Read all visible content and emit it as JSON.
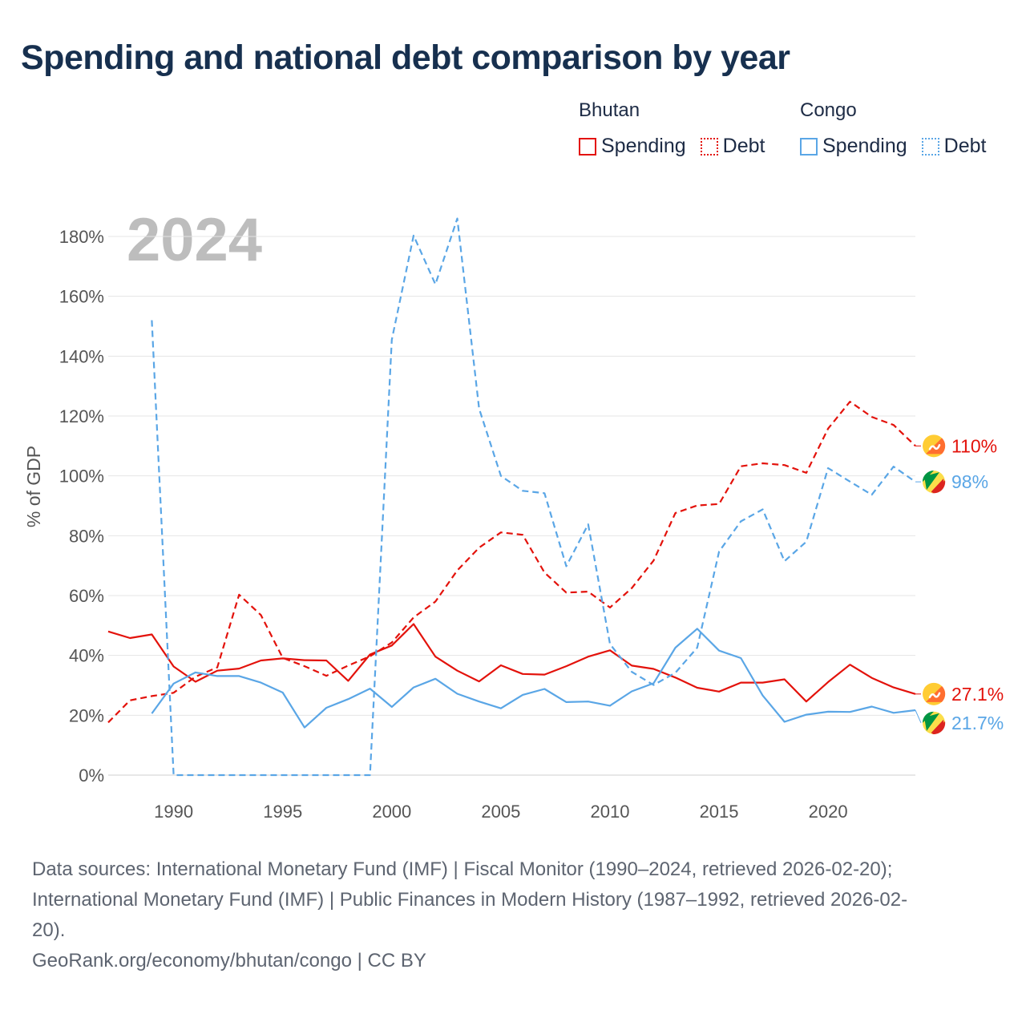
{
  "title": "Spending and national debt comparison by year",
  "legend": {
    "groups": [
      {
        "name": "Bhutan",
        "items": [
          {
            "label": "Spending",
            "style": "solid",
            "color": "#e3120b"
          },
          {
            "label": "Debt",
            "style": "dotted",
            "color": "#e3120b"
          }
        ]
      },
      {
        "name": "Congo",
        "items": [
          {
            "label": "Spending",
            "style": "solid",
            "color": "#5aa6e6"
          },
          {
            "label": "Debt",
            "style": "dotted",
            "color": "#5aa6e6"
          }
        ]
      }
    ]
  },
  "chart_data": {
    "type": "line",
    "title": "Spending and national debt comparison by year",
    "year_label": "2024",
    "xlabel": "",
    "ylabel": "% of GDP",
    "xlim": [
      1987,
      2024
    ],
    "ylim": [
      0,
      180
    ],
    "xticks": [
      1990,
      1995,
      2000,
      2005,
      2010,
      2015,
      2020
    ],
    "yticks": [
      0,
      20,
      40,
      60,
      80,
      100,
      120,
      140,
      160,
      180
    ],
    "ytick_labels": [
      "0%",
      "20%",
      "40%",
      "60%",
      "80%",
      "100%",
      "120%",
      "140%",
      "160%",
      "180%"
    ],
    "grid": true,
    "series": [
      {
        "name": "Bhutan Spending",
        "country": "Bhutan",
        "color": "#e3120b",
        "dash": "solid",
        "x": [
          1987,
          1988,
          1989,
          1990,
          1991,
          1992,
          1993,
          1994,
          1995,
          1996,
          1997,
          1998,
          1999,
          2000,
          2001,
          2002,
          2003,
          2004,
          2005,
          2006,
          2007,
          2008,
          2009,
          2010,
          2011,
          2012,
          2013,
          2014,
          2015,
          2016,
          2017,
          2018,
          2019,
          2020,
          2021,
          2022,
          2023,
          2024
        ],
        "y": [
          48,
          45.8,
          47,
          36.3,
          31.2,
          34.9,
          35.6,
          38.3,
          39,
          38.4,
          38.3,
          31.5,
          40.3,
          43.3,
          50.5,
          39.6,
          34.9,
          31.3,
          36.7,
          33.8,
          33.6,
          36.4,
          39.6,
          41.7,
          36.6,
          35.5,
          32.6,
          29.2,
          27.9,
          30.9,
          30.9,
          32,
          24.6,
          31.1,
          36.9,
          32.5,
          29.3,
          27.1
        ],
        "end_label": "27.1%",
        "flag": "bhutan-flag-icon"
      },
      {
        "name": "Bhutan Debt",
        "country": "Bhutan",
        "color": "#e3120b",
        "dash": "dashed",
        "x": [
          1987,
          1988,
          1989,
          1990,
          1991,
          1992,
          1993,
          1994,
          1995,
          1996,
          1997,
          1998,
          1999,
          2000,
          2001,
          2002,
          2003,
          2004,
          2005,
          2006,
          2007,
          2008,
          2009,
          2010,
          2011,
          2012,
          2013,
          2014,
          2015,
          2016,
          2017,
          2018,
          2019,
          2020,
          2021,
          2022,
          2023,
          2024
        ],
        "y": [
          17.6,
          25,
          26.4,
          27.5,
          32.9,
          36,
          60.3,
          53.5,
          39.2,
          36.4,
          33.2,
          36.6,
          39.7,
          44.3,
          52.7,
          58,
          68.4,
          76,
          81.1,
          80.3,
          67.7,
          61,
          61.3,
          56,
          62.5,
          71.7,
          87.6,
          90.1,
          90.6,
          103.2,
          104.2,
          103.6,
          101,
          115.8,
          124.8,
          119.7,
          117,
          110
        ],
        "end_label": "110%",
        "flag": "bhutan-flag-icon"
      },
      {
        "name": "Congo Spending",
        "country": "Congo",
        "color": "#5aa6e6",
        "dash": "solid",
        "x": [
          1989,
          1990,
          1991,
          1992,
          1993,
          1994,
          1995,
          1996,
          1997,
          1998,
          1999,
          2000,
          2001,
          2002,
          2003,
          2004,
          2005,
          2006,
          2007,
          2008,
          2009,
          2010,
          2011,
          2012,
          2013,
          2014,
          2015,
          2016,
          2017,
          2018,
          2019,
          2020,
          2021,
          2022,
          2023,
          2024
        ],
        "y": [
          20.6,
          30.6,
          34.3,
          33.1,
          33.1,
          30.9,
          27.6,
          15.9,
          22.5,
          25.4,
          28.9,
          22.8,
          29.3,
          32.2,
          27.2,
          24.6,
          22.3,
          26.8,
          28.8,
          24.4,
          24.6,
          23.2,
          28,
          30.7,
          42.6,
          48.9,
          41.6,
          39.1,
          26.6,
          17.8,
          20.2,
          21.2,
          21.1,
          22.9,
          20.8,
          21.7
        ],
        "end_label": "21.7%",
        "flag": "congo-flag-icon"
      },
      {
        "name": "Congo Debt",
        "country": "Congo",
        "color": "#5aa6e6",
        "dash": "dashed",
        "x": [
          1989,
          1990,
          1991,
          1992,
          1993,
          1994,
          1995,
          1996,
          1997,
          1998,
          1999,
          2000,
          2001,
          2002,
          2003,
          2004,
          2005,
          2006,
          2007,
          2008,
          2009,
          2010,
          2011,
          2012,
          2013,
          2014,
          2015,
          2016,
          2017,
          2018,
          2019,
          2020,
          2021,
          2022,
          2023,
          2024
        ],
        "y": [
          152,
          0,
          0,
          0,
          0,
          0,
          0,
          0,
          0,
          0,
          0,
          145.5,
          180.3,
          164,
          186,
          122.5,
          100,
          95,
          94.2,
          69.8,
          83.8,
          43.8,
          34.5,
          30.1,
          34.2,
          42.6,
          74.7,
          84.8,
          88.8,
          71.5,
          78,
          102.6,
          98.1,
          93.7,
          103.1,
          98
        ],
        "end_label": "98%",
        "flag": "congo-flag-icon"
      }
    ]
  },
  "source_lines": [
    "Data sources: International Monetary Fund (IMF) | Fiscal Monitor (1990–2024, retrieved 2026-02-20);",
    "International Monetary Fund (IMF) | Public Finances in Modern History (1987–1992, retrieved 2026-02-",
    "20).",
    "GeoRank.org/economy/bhutan/congo | CC BY"
  ]
}
